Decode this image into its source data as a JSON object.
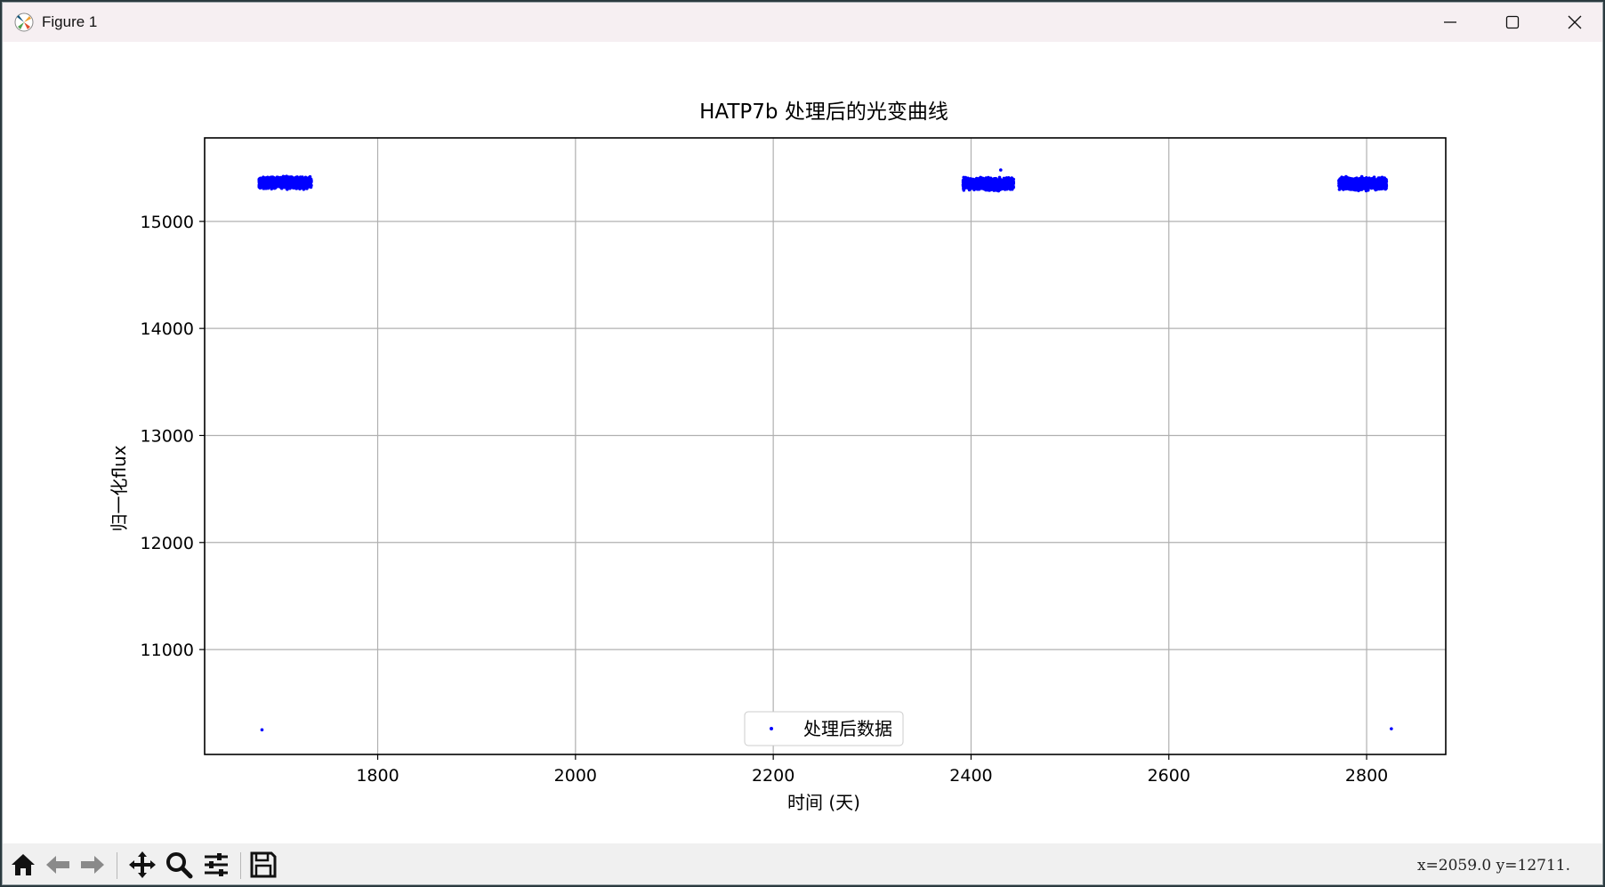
{
  "window": {
    "title": "Figure 1"
  },
  "icons": {
    "app": "matplotlib-icon",
    "minimize": "minimize-icon",
    "maximize": "maximize-icon",
    "close": "close-icon",
    "home": "home-icon",
    "back": "arrow-left-icon",
    "forward": "arrow-right-icon",
    "pan": "move-icon",
    "zoom": "magnifier-icon",
    "configure": "sliders-icon",
    "save": "floppy-disk-icon"
  },
  "statusbar": {
    "coords": "x=2059.0  y=12711."
  },
  "colors": {
    "marker": "#0000ff",
    "grid": "#b0b0b0",
    "axes": "#000000"
  },
  "chart_data": {
    "type": "scatter",
    "title": "HATP7b 处理后的光变曲线",
    "xlabel": "时间 (天)",
    "ylabel": "归一化flux",
    "xlim": [
      1625,
      2880
    ],
    "ylim": [
      10020,
      15780
    ],
    "xticks": [
      1800,
      2000,
      2200,
      2400,
      2600,
      2800
    ],
    "yticks": [
      11000,
      12000,
      13000,
      14000,
      15000
    ],
    "grid": true,
    "legend": {
      "position": "lower center",
      "entries": [
        "处理后数据"
      ]
    },
    "series": [
      {
        "name": "处理后数据",
        "marker": ".",
        "clusters": [
          {
            "x_range": [
              1680,
              1733
            ],
            "y_center": 15360,
            "y_spread": 70
          },
          {
            "x_range": [
              2392,
              2443
            ],
            "y_center": 15350,
            "y_spread": 70
          },
          {
            "x_range": [
              2772,
              2820
            ],
            "y_center": 15350,
            "y_spread": 70
          }
        ],
        "points": [
          {
            "x": 1683,
            "y": 10250
          },
          {
            "x": 2825,
            "y": 10260
          },
          {
            "x": 2430,
            "y": 15480
          }
        ]
      }
    ]
  }
}
